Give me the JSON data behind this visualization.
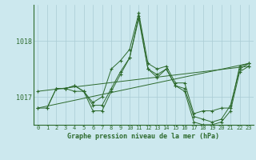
{
  "title": "Graphe pression niveau de la mer (hPa)",
  "bg_color": "#cce8ee",
  "line_color": "#2d6a2d",
  "grid_color": "#aaccd4",
  "ylim": [
    1016.5,
    1018.65
  ],
  "xlim": [
    -0.5,
    23.5
  ],
  "yticks": [
    1017,
    1018
  ],
  "xticks": [
    0,
    1,
    2,
    3,
    4,
    5,
    6,
    7,
    8,
    9,
    10,
    11,
    12,
    13,
    14,
    15,
    16,
    17,
    18,
    19,
    20,
    21,
    22,
    23
  ],
  "series": [
    {
      "x": [
        0,
        1,
        2,
        3,
        4,
        5,
        6,
        7,
        8,
        9,
        10,
        11,
        12,
        13,
        14,
        15,
        16,
        17,
        18,
        19,
        20,
        21,
        22,
        23
      ],
      "y": [
        1016.8,
        1016.8,
        1017.15,
        1017.15,
        1017.2,
        1017.1,
        1016.9,
        1017.0,
        1017.5,
        1017.65,
        1017.85,
        1018.5,
        1017.6,
        1017.5,
        1017.55,
        1017.25,
        1017.25,
        1016.7,
        1016.75,
        1016.75,
        1016.8,
        1016.8,
        1017.55,
        1017.6
      ]
    },
    {
      "x": [
        2,
        3,
        4,
        5,
        6,
        7,
        8,
        9,
        10,
        11,
        12,
        13,
        14,
        15,
        16,
        17,
        18,
        19,
        20,
        21,
        22,
        23
      ],
      "y": [
        1017.15,
        1017.15,
        1017.2,
        1017.1,
        1016.85,
        1016.85,
        1017.15,
        1017.45,
        1017.7,
        1018.45,
        1017.5,
        1017.4,
        1017.5,
        1017.2,
        1017.15,
        1016.65,
        1016.6,
        1016.55,
        1016.6,
        1016.85,
        1017.5,
        1017.6
      ]
    },
    {
      "x": [
        1,
        2,
        3,
        4,
        5,
        6,
        7,
        8,
        9,
        10,
        11,
        12,
        13,
        14,
        15,
        16,
        17,
        18,
        19,
        20,
        21,
        22,
        23
      ],
      "y": [
        1016.8,
        1017.15,
        1017.15,
        1017.1,
        1017.1,
        1016.75,
        1016.75,
        1017.1,
        1017.4,
        1017.7,
        1018.4,
        1017.5,
        1017.35,
        1017.5,
        1017.2,
        1017.1,
        1016.55,
        1016.5,
        1016.5,
        1016.55,
        1016.75,
        1017.45,
        1017.55
      ]
    },
    {
      "x": [
        0,
        23
      ],
      "y": [
        1017.1,
        1017.55
      ]
    },
    {
      "x": [
        0,
        23
      ],
      "y": [
        1016.8,
        1017.6
      ]
    }
  ]
}
